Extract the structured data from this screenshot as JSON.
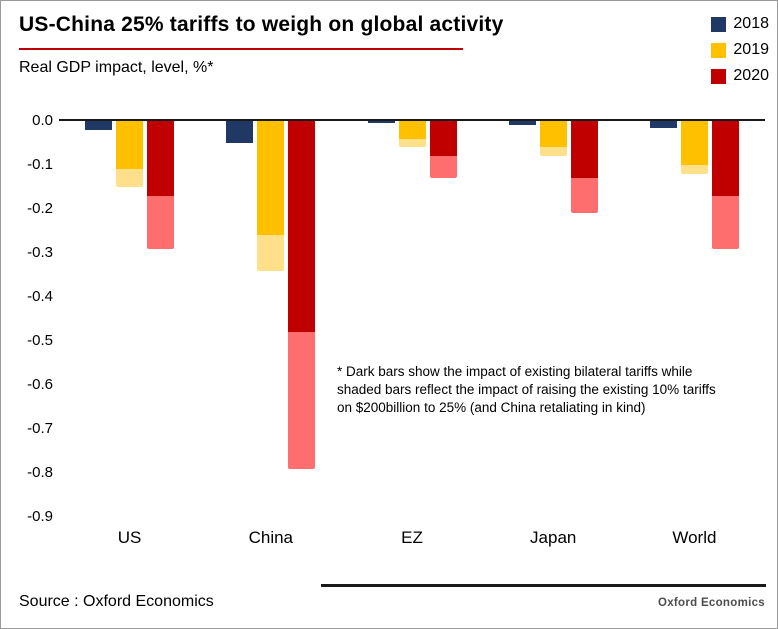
{
  "chart_data": {
    "type": "bar",
    "title": "US-China 25% tariffs to weigh on global activity",
    "subtitle": "Real GDP impact, level, %*",
    "categories": [
      "US",
      "China",
      "EZ",
      "Japan",
      "World"
    ],
    "ylim": [
      -0.9,
      0
    ],
    "y_ticks": [
      "0.0",
      "-0.1",
      "-0.2",
      "-0.3",
      "-0.4",
      "-0.5",
      "-0.6",
      "-0.7",
      "-0.8",
      "-0.9"
    ],
    "grid": false,
    "legend_position": "top-right",
    "accent_underline_color": "#c00000",
    "series": [
      {
        "name": "2018",
        "dark_color": "#1f3864",
        "light_color": "#1f3864",
        "dark": [
          -0.02,
          -0.05,
          -0.005,
          -0.01,
          -0.015
        ],
        "total": [
          -0.02,
          -0.05,
          -0.005,
          -0.01,
          -0.015
        ]
      },
      {
        "name": "2019",
        "dark_color": "#ffc000",
        "light_color": "#ffe08a",
        "dark": [
          -0.11,
          -0.26,
          -0.04,
          -0.06,
          -0.1
        ],
        "total": [
          -0.15,
          -0.34,
          -0.06,
          -0.08,
          -0.12
        ]
      },
      {
        "name": "2020",
        "dark_color": "#c00000",
        "light_color": "#ff6e6e",
        "dark": [
          -0.17,
          -0.48,
          -0.08,
          -0.13,
          -0.17
        ],
        "total": [
          -0.29,
          -0.79,
          -0.13,
          -0.21,
          -0.29
        ]
      }
    ],
    "annotation": "* Dark bars show the impact of existing bilateral tariffs while shaded bars reflect the impact of raising the existing 10% tariffs on $200billion to 25% (and China retaliating in kind)"
  },
  "footer": {
    "source": "Source : Oxford Economics",
    "brand": "Oxford Economics"
  }
}
